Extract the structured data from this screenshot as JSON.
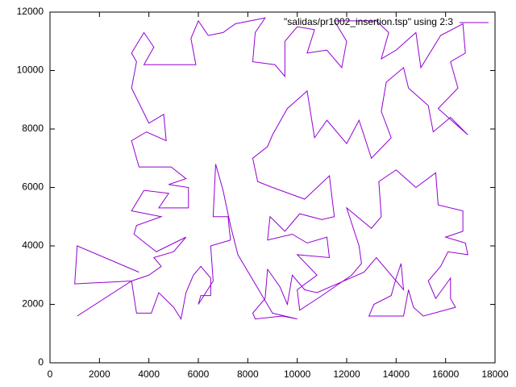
{
  "chart_data": {
    "type": "line",
    "xlim": [
      0,
      18000
    ],
    "ylim": [
      0,
      12000
    ],
    "xticks": [
      0,
      2000,
      4000,
      6000,
      8000,
      10000,
      12000,
      14000,
      16000,
      18000
    ],
    "yticks": [
      0,
      2000,
      4000,
      6000,
      8000,
      10000,
      12000
    ],
    "grid": false,
    "legend": "top-right",
    "series": [
      {
        "name": "\"salidas/pr1002_insertion.tsp\" using 2:3",
        "color": "#9400d3",
        "x": [
          1100,
          3300,
          4000,
          4500,
          4200,
          5000,
          5500,
          4300,
          3400,
          3500,
          4500,
          3300,
          3800,
          4800,
          4400,
          5600,
          5600,
          4800,
          5500,
          4900,
          3600,
          3300,
          3900,
          4700,
          4600,
          4000,
          3300,
          3500,
          3300,
          3800,
          4200,
          3800,
          4600,
          5900,
          5700,
          6000,
          6400,
          7000,
          7500,
          8700,
          8300,
          8200,
          9100,
          9500,
          9500,
          10000,
          10700,
          10400,
          11200,
          11800,
          12000,
          11500,
          13200,
          13700,
          13400,
          14000,
          14800,
          15000,
          15800,
          16700,
          16800,
          16200,
          16500,
          15700,
          16900,
          16200,
          15500,
          15300,
          14500,
          14300,
          13600,
          13400,
          13800,
          13000,
          12500,
          12000,
          11200,
          10700,
          10400,
          9600,
          9000,
          8800,
          8200,
          8400,
          9000,
          10300,
          11300,
          11500,
          11000,
          10100,
          9500,
          8900,
          8800,
          9800,
          10400,
          11200,
          11300,
          10000,
          10800,
          10000,
          10100,
          11000,
          12200,
          12600,
          12500,
          12000,
          13000,
          13400,
          13300,
          14000,
          14800,
          15600,
          15700,
          16700,
          16700,
          16000,
          16800,
          16900,
          16100,
          15800,
          15300,
          15600,
          16200,
          16200,
          16400,
          15100,
          14700,
          14500,
          14300,
          12900,
          13100,
          13800,
          14000,
          14200,
          14300,
          13200,
          12700,
          10800,
          10300,
          9800,
          9600,
          9300,
          8800,
          8700,
          8200,
          8300,
          9400,
          10000,
          9000,
          7600,
          7300,
          7000,
          6700,
          6600,
          7200,
          7300,
          6500,
          6600,
          6000,
          6100,
          6500,
          6500,
          6100,
          5800,
          5500,
          5300,
          5000,
          4400,
          4100,
          3500,
          3300,
          1000,
          1100,
          3600
        ],
        "values": [
          1600,
          2800,
          3000,
          3300,
          3600,
          3800,
          4300,
          3800,
          4400,
          4700,
          5000,
          5200,
          5900,
          5800,
          5300,
          5300,
          6000,
          6100,
          6300,
          6700,
          6700,
          7600,
          7900,
          7600,
          8500,
          8200,
          9400,
          10300,
          10600,
          11300,
          10800,
          10200,
          10200,
          10200,
          11100,
          11700,
          11200,
          11300,
          11600,
          11800,
          11300,
          10300,
          10200,
          9800,
          11000,
          11500,
          11400,
          10600,
          10700,
          10100,
          11000,
          11700,
          11700,
          11300,
          10400,
          10700,
          11300,
          10100,
          11200,
          11600,
          10600,
          10300,
          9400,
          8700,
          7800,
          8400,
          7900,
          8800,
          9400,
          10100,
          9600,
          8600,
          7700,
          7000,
          8300,
          7500,
          8300,
          7700,
          9300,
          8700,
          7800,
          7400,
          7000,
          6200,
          6000,
          5600,
          6400,
          5000,
          4900,
          5100,
          4500,
          5000,
          4200,
          4400,
          4100,
          4300,
          3600,
          3700,
          3000,
          2500,
          1800,
          2300,
          3000,
          3400,
          4000,
          5300,
          4600,
          5000,
          6200,
          6600,
          6000,
          6500,
          5400,
          5200,
          4500,
          4300,
          4100,
          3700,
          3800,
          3300,
          2800,
          2200,
          2900,
          2200,
          1900,
          1600,
          1900,
          2500,
          1600,
          1600,
          2000,
          2300,
          2900,
          3400,
          2500,
          3600,
          3100,
          2400,
          2500,
          3000,
          2000,
          2600,
          3200,
          2200,
          1700,
          1500,
          1600,
          1500,
          1700,
          3700,
          4700,
          5900,
          6800,
          5000,
          5000,
          4200,
          4000,
          2800,
          2000,
          2300,
          2300,
          2900,
          3300,
          3000,
          2400,
          1500,
          1900,
          2400,
          1700,
          1700,
          2800,
          2700,
          4000,
          3100
        ]
      }
    ]
  }
}
